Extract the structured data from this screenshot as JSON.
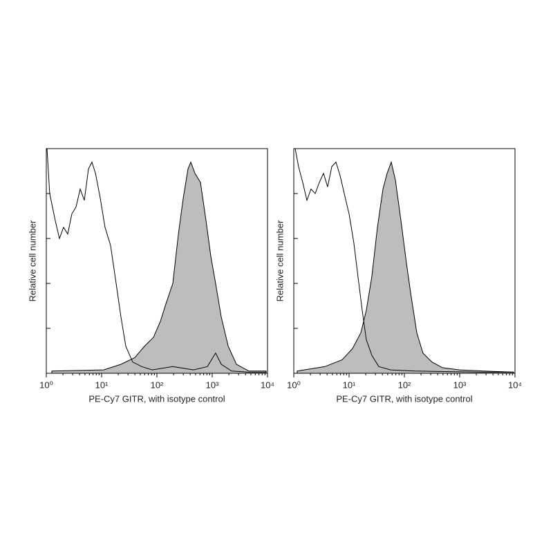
{
  "chart_data": [
    {
      "type": "area",
      "xscale": "log",
      "xlabel": "PE-Cy7 GITR, with isotype control",
      "ylabel": "Relative cell number",
      "xlim": [
        1,
        10000
      ],
      "ylim": [
        0,
        100
      ],
      "xticks": [
        {
          "value": 1,
          "label": "10⁰"
        },
        {
          "value": 10,
          "label": "10¹"
        },
        {
          "value": 100,
          "label": "10²"
        },
        {
          "value": 1000,
          "label": "10³"
        },
        {
          "value": 10000,
          "label": "10⁴"
        }
      ],
      "yticks": [
        0,
        20,
        40,
        60,
        80,
        100
      ],
      "series": [
        {
          "color": "#000000",
          "x": [
            1.03,
            1.15,
            1.45,
            1.73,
            2.05,
            2.44,
            2.9,
            3.45,
            4.1,
            4.87,
            5.79,
            6.68,
            7.74,
            9.44,
            11.5,
            14.5,
            18.3,
            22.4,
            27.4,
            36.5,
            53.1,
            82,
            194,
            459,
            818,
            1151,
            1459,
            2239,
            4597,
            9441
          ],
          "values": [
            100,
            80,
            68,
            60,
            65,
            62,
            71,
            74,
            82,
            77,
            91,
            94,
            89,
            78,
            65,
            57,
            40,
            25,
            12,
            5,
            3,
            1.5,
            3,
            1.5,
            3,
            9,
            4,
            1,
            0.5,
            0.5
          ]
        },
        {
          "color": "#000000",
          "fill_color": "#bdbdbd",
          "x": [
            1.26,
            10.9,
            22.4,
            39.8,
            59.4,
            86.6,
            115,
            146,
            194,
            245,
            299,
            365,
            410,
            487,
            613,
            771,
            944,
            1151,
            1459,
            1950,
            2738,
            4597,
            9441
          ],
          "values": [
            1,
            1.5,
            4,
            7,
            12,
            16,
            23,
            31,
            40,
            62,
            78,
            91,
            94,
            89,
            85,
            68,
            52,
            40,
            25,
            12,
            4,
            1,
            1
          ]
        }
      ]
    },
    {
      "type": "area",
      "xscale": "log",
      "xlabel": "PE-Cy7 GITR, with isotype control",
      "ylabel": "Relative cell number",
      "xlim": [
        1,
        10000
      ],
      "ylim": [
        0,
        100
      ],
      "xticks": [
        {
          "value": 1,
          "label": "10⁰"
        },
        {
          "value": 10,
          "label": "10¹"
        },
        {
          "value": 100,
          "label": "10²"
        },
        {
          "value": 1000,
          "label": "10³"
        },
        {
          "value": 10000,
          "label": "10⁴"
        }
      ],
      "yticks": [
        0,
        20,
        40,
        60,
        80,
        100
      ],
      "series": [
        {
          "color": "#000000",
          "x": [
            1.06,
            1.22,
            1.45,
            1.73,
            2.05,
            2.44,
            2.9,
            3.45,
            4.1,
            4.87,
            5.79,
            6.88,
            8.18,
            10,
            12.2,
            14.5,
            17.3,
            20.5,
            25.8,
            34.5,
            56.2,
            153,
            2709,
            9441
          ],
          "values": [
            100,
            92,
            85,
            77,
            82,
            80,
            85,
            89,
            83,
            92,
            94,
            88,
            80,
            71,
            58,
            43,
            28,
            15,
            8,
            3,
            1.5,
            1,
            0.5,
            0.5
          ]
        },
        {
          "color": "#000000",
          "fill_color": "#bdbdbd",
          "x": [
            1.15,
            3.65,
            7.5,
            11.5,
            16.3,
            20.5,
            25.8,
            32.5,
            41,
            48.7,
            57.9,
            68.8,
            86.6,
            109,
            133,
            168,
            217,
            316,
            487,
            1000,
            2709,
            9441
          ],
          "values": [
            1,
            3,
            6,
            11,
            18,
            28,
            43,
            65,
            82,
            89,
            94,
            86,
            68,
            49,
            34,
            18,
            9,
            5,
            2.5,
            1.5,
            1,
            0.5
          ]
        }
      ]
    }
  ]
}
